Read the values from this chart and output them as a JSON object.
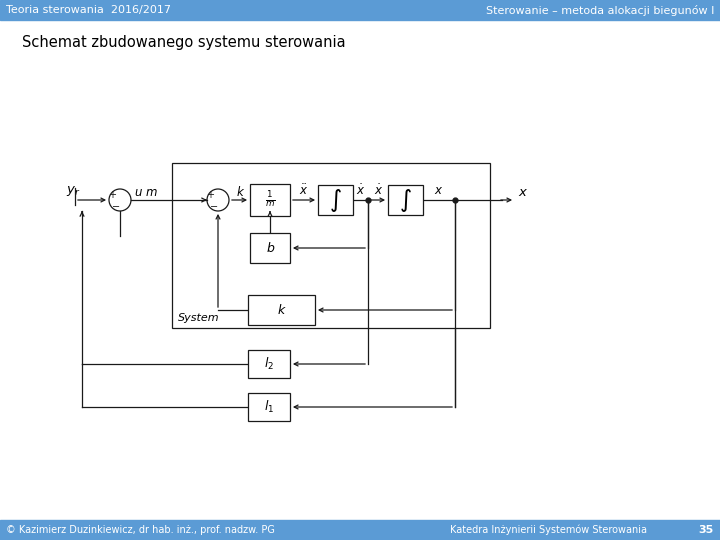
{
  "title_left": "Teoria sterowania  2016/2017",
  "title_right": "Sterowanie – metoda alokacji biegunów I",
  "subtitle": "Schemat zbudowanego systemu sterowania",
  "footer_left": "© Kazimierz Duzinkiewicz, dr hab. inż., prof. nadzw. PG",
  "footer_right": "Katedra Inżynierii Systemów Sterowania",
  "footer_num": "35",
  "header_bg": "#5b9bd5",
  "bg_color": "#ffffff",
  "line_color": "#1a1a1a"
}
